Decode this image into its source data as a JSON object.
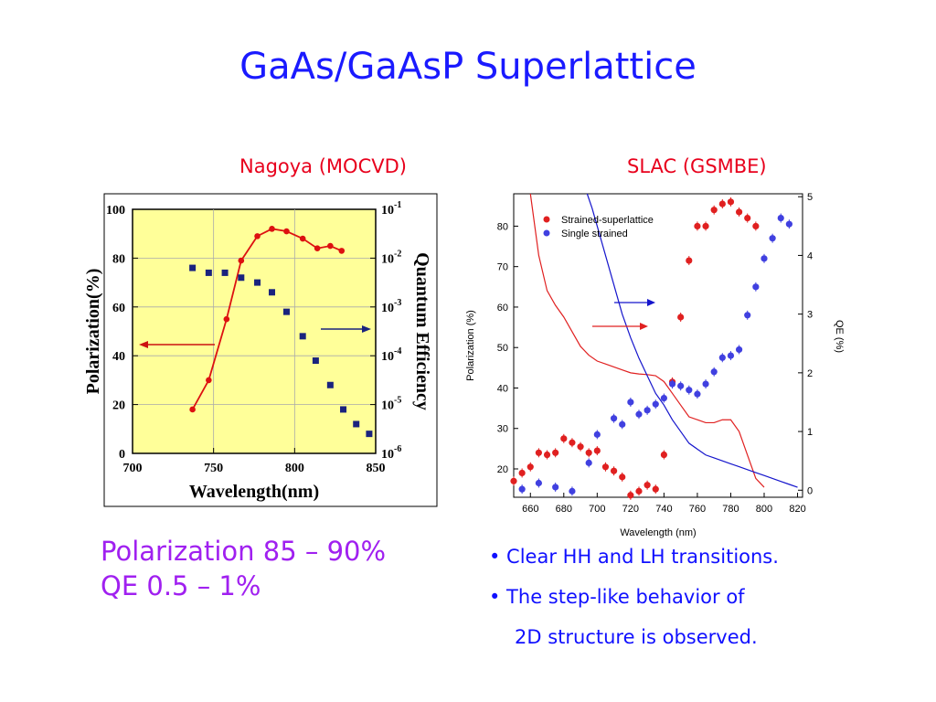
{
  "slide": {
    "title": "GaAs/GaAsP Superlattice",
    "summary_line1": "Polarization 85 – 90%",
    "summary_line2": "QE 0.5 – 1%",
    "bullet1": "• Clear HH and LH transitions.",
    "bullet2": "• The step-like behavior of",
    "bullet2_cont": "2D structure is observed.",
    "colors": {
      "title": "#1a1aff",
      "subtitle": "#e8001c",
      "summary": "#a020f0",
      "bullets": "#1010ff"
    }
  },
  "chart_data": [
    {
      "type": "scatter",
      "subtitle": "Nagoya (MOCVD)",
      "xlabel": "Wavelength(nm)",
      "ylabel": "Polarization(%)",
      "y2label": "Quantum Efficiency",
      "xlim": [
        700,
        850
      ],
      "ylim": [
        0,
        100
      ],
      "y2lim_log10": [
        -6,
        -1
      ],
      "y2_scale": "log",
      "background": "#ffff99",
      "grid": true,
      "xticks": [
        "700",
        "750",
        "800",
        "850"
      ],
      "yticks": [
        "0",
        "20",
        "40",
        "60",
        "80",
        "100"
      ],
      "y2ticks": [
        {
          "base": "10",
          "exp": "-6",
          "v": -6
        },
        {
          "base": "10",
          "exp": "-5",
          "v": -5
        },
        {
          "base": "10",
          "exp": "-4",
          "v": -4
        },
        {
          "base": "10",
          "exp": "-3",
          "v": -3
        },
        {
          "base": "10",
          "exp": "-2",
          "v": -2
        },
        {
          "base": "10",
          "exp": "-1",
          "v": -1
        }
      ],
      "series": [
        {
          "color": "#dd1111",
          "style": "line-circle",
          "axis": "left",
          "x": [
            737,
            747,
            758,
            767,
            777,
            786,
            795,
            805,
            814,
            822,
            829
          ],
          "y": [
            18,
            30,
            55,
            79,
            89,
            92,
            91,
            88,
            84,
            85,
            83
          ]
        },
        {
          "color": "#1a237e",
          "style": "square",
          "axis": "right",
          "x": [
            737,
            747,
            757,
            767,
            777,
            786,
            795,
            805,
            813,
            822,
            830,
            838,
            846
          ],
          "y_log10": [
            -2.2,
            -2.3,
            -2.3,
            -2.4,
            -2.5,
            -2.7,
            -3.1,
            -3.6,
            -4.1,
            -4.6,
            -5.1,
            -5.4,
            -5.6
          ]
        }
      ],
      "arrows": [
        "left to Polarization axis",
        "right to Quantum Efficiency axis"
      ]
    },
    {
      "type": "scatter",
      "subtitle": "SLAC (GSMBE)",
      "xlabel": "Wavelength (nm)",
      "ylabel": "Polarization (%)",
      "y2label": "QE (%)",
      "xlim": [
        650,
        823
      ],
      "ylim": [
        13,
        88
      ],
      "y2lim": [
        -0.12,
        5.05
      ],
      "xticks": [
        660,
        680,
        700,
        720,
        740,
        760,
        780,
        800,
        820
      ],
      "yticks": [
        20,
        30,
        40,
        50,
        60,
        70,
        80
      ],
      "y2ticks": [
        0,
        1,
        2,
        3,
        4,
        5
      ],
      "legend_position": "top-left",
      "series": [
        {
          "name": "Strained-superlattice",
          "color": "#e02020",
          "style": "point-errorbar",
          "axis": "left",
          "x": [
            650,
            655,
            660,
            665,
            670,
            675,
            680,
            685,
            690,
            695,
            700,
            705,
            710,
            715,
            720,
            725,
            730,
            735,
            740,
            745,
            750,
            755,
            760,
            765,
            770,
            775,
            780,
            785,
            790,
            795
          ],
          "y": [
            17,
            19,
            20.5,
            24,
            23.5,
            24,
            27.5,
            26.5,
            25.5,
            24,
            24.5,
            20.5,
            19.5,
            18,
            13.5,
            14.5,
            16,
            15,
            23.5,
            41.5,
            57.5,
            71.5,
            80,
            80,
            84,
            85.5,
            86,
            83.5,
            82,
            80
          ]
        },
        {
          "name": "Single strained",
          "color": "#4040e0",
          "style": "point-errorbar",
          "axis": "left",
          "x": [
            655,
            665,
            675,
            685,
            695,
            700,
            710,
            715,
            720,
            725,
            730,
            735,
            740,
            745,
            750,
            755,
            760,
            765,
            770,
            775,
            780,
            785,
            790,
            795,
            800,
            805,
            810,
            815
          ],
          "y": [
            15,
            16.5,
            15.5,
            14.5,
            21.5,
            28.5,
            32.5,
            31,
            36.5,
            33.5,
            34.5,
            36,
            37.5,
            41,
            40.5,
            39.5,
            38.5,
            41,
            44,
            47.5,
            48,
            49.5,
            58,
            65,
            72,
            77,
            82,
            80.5
          ]
        },
        {
          "color": "#e02020",
          "style": "line",
          "axis": "right",
          "x": [
            660,
            665,
            670,
            675,
            680,
            685,
            690,
            695,
            700,
            705,
            710,
            715,
            720,
            725,
            730,
            735,
            740,
            745,
            750,
            755,
            760,
            765,
            770,
            775,
            780,
            785,
            790,
            795,
            800
          ],
          "y": [
            5.05,
            4.0,
            3.4,
            3.15,
            2.95,
            2.7,
            2.45,
            2.3,
            2.2,
            2.15,
            2.1,
            2.05,
            2.0,
            1.98,
            1.97,
            1.95,
            1.85,
            1.65,
            1.45,
            1.25,
            1.2,
            1.15,
            1.15,
            1.2,
            1.2,
            1.0,
            0.6,
            0.2,
            0.05
          ]
        },
        {
          "color": "#1515cc",
          "style": "line",
          "axis": "right",
          "x": [
            694,
            697,
            700,
            705,
            710,
            715,
            720,
            725,
            730,
            735,
            740,
            745,
            750,
            755,
            760,
            765,
            770,
            775,
            780,
            785,
            790,
            795,
            800,
            805,
            810,
            815,
            820
          ],
          "y": [
            5.05,
            4.8,
            4.5,
            4.0,
            3.5,
            3.0,
            2.6,
            2.25,
            1.95,
            1.65,
            1.45,
            1.2,
            1.0,
            0.8,
            0.7,
            0.6,
            0.55,
            0.5,
            0.45,
            0.4,
            0.35,
            0.3,
            0.25,
            0.2,
            0.15,
            0.1,
            0.05
          ]
        }
      ],
      "arrows": [
        "right to QE axis (blue)",
        "right to QE axis (red)"
      ]
    }
  ]
}
